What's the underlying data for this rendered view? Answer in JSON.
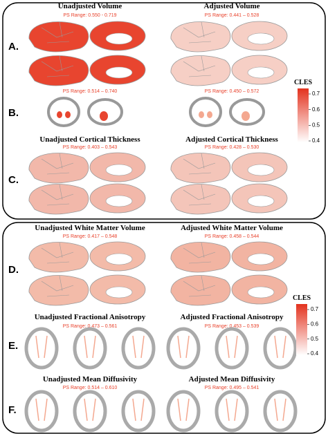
{
  "panels": [
    {
      "letter": "A.",
      "left": {
        "title": "Unadjusted Volume",
        "ps_range": "PS Range: 0.550 - 0.719"
      },
      "right": {
        "title": "Adjusted Volume",
        "ps_range": "PS Range: 0.441 – 0.528"
      }
    },
    {
      "letter": "B.",
      "left": {
        "ps_range": "PS Range: 0.514 – 0.740"
      },
      "right": {
        "ps_range": "PS Range: 0.450 – 0.572"
      }
    },
    {
      "letter": "C.",
      "left": {
        "title": "Unadjusted Cortical Thickness",
        "ps_range": "PS Range: 0.403 – 0.543"
      },
      "right": {
        "title": "Adjusted Cortical Thickness",
        "ps_range": "PS Range: 0.428 – 0.530"
      }
    },
    {
      "letter": "D.",
      "left": {
        "title": "Unadjusted White Matter Volume",
        "ps_range": "PS Range: 0.417 – 0.548"
      },
      "right": {
        "title": "Adjusted White Matter Volume",
        "ps_range": "PS Range: 0.458 – 0.544"
      }
    },
    {
      "letter": "E.",
      "left": {
        "title": "Unadjusted Fractional Anisotropy",
        "ps_range": "PS Range: 0.473 – 0.561"
      },
      "right": {
        "title": "Adjusted Fractional Anisotropy",
        "ps_range": "PS Range: 0.453 – 0.539"
      }
    },
    {
      "letter": "F.",
      "left": {
        "title": "Unadjusted Mean Diffusivity",
        "ps_range": "PS Range: 0.514 – 0.610"
      },
      "right": {
        "title": "Adjusted Mean Diffusivity",
        "ps_range": "PS Range: 0.495 – 0.541"
      }
    }
  ],
  "colorbars": [
    {
      "title": "CLES",
      "ticks": [
        0.7,
        0.6,
        0.5,
        0.4
      ]
    },
    {
      "title": "CLES",
      "ticks": [
        0.7,
        0.6,
        0.5,
        0.4
      ]
    }
  ]
}
